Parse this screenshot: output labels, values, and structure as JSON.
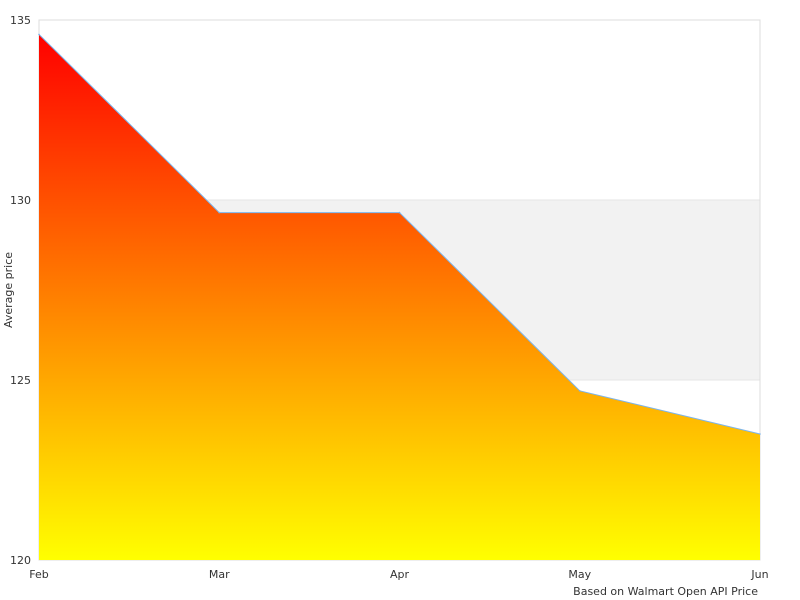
{
  "chart_data": {
    "type": "area",
    "categories": [
      "Feb",
      "Mar",
      "Apr",
      "May",
      "Jun"
    ],
    "series": [
      {
        "values": [
          134.6,
          129.65,
          129.65,
          124.7,
          123.5
        ]
      }
    ],
    "ylabel": "Average price",
    "ylim": [
      120,
      135
    ],
    "yticks": [
      120,
      125,
      130,
      135
    ],
    "grid": "alternating horizontal bands",
    "gradient": [
      "#ff0000",
      "#ffff00"
    ],
    "line_color": "#7cb5ec",
    "band_color": "#f2f2f2",
    "credit": "Based on Walmart Open API Price"
  }
}
